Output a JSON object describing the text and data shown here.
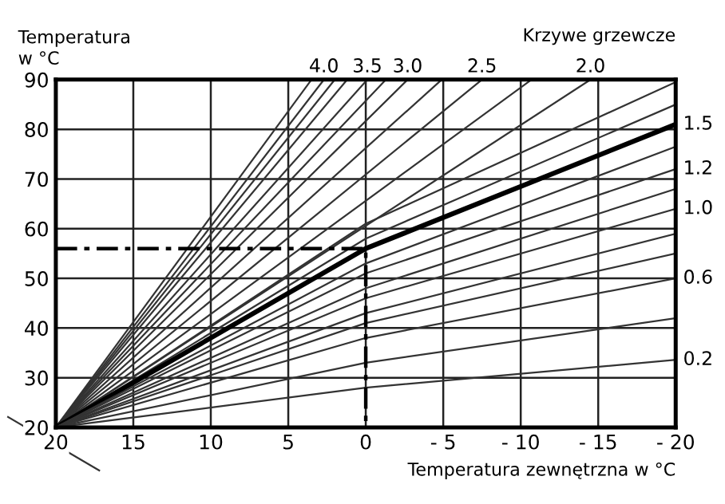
{
  "chart_data": {
    "type": "line",
    "ylabel": "Temperatura\nw °C",
    "xlabel": "Temperatura zewnętrzna w °C",
    "annotations": [
      "Krzywe grzewcze"
    ],
    "xlim": [
      20,
      -20
    ],
    "ylim": [
      20,
      90
    ],
    "xticks": [
      20,
      15,
      10,
      5,
      0,
      {
        "value": -5,
        "label": "- 5"
      },
      {
        "value": -10,
        "label": "- 10"
      },
      {
        "value": -15,
        "label": "- 15"
      },
      {
        "value": -20,
        "label": "- 20"
      }
    ],
    "yticks": [
      20,
      30,
      40,
      50,
      60,
      70,
      80,
      90
    ],
    "grid": true,
    "marker": "none",
    "series": [
      {
        "color": "#333333",
        "x": [
          20,
          3.5
        ],
        "values": [
          20,
          90
        ]
      },
      {
        "name": "4.0",
        "color": "#333333",
        "x": [
          20,
          2.7
        ],
        "values": [
          20,
          90
        ]
      },
      {
        "color": "#333333",
        "x": [
          20,
          2.0
        ],
        "values": [
          20,
          90
        ]
      },
      {
        "color": "#333333",
        "x": [
          20,
          1.2
        ],
        "values": [
          20,
          90
        ]
      },
      {
        "name": "3.5",
        "color": "#333333",
        "x": [
          20,
          -0.1
        ],
        "values": [
          20,
          90
        ]
      },
      {
        "color": "#333333",
        "x": [
          20,
          -1.3
        ],
        "values": [
          20,
          90
        ]
      },
      {
        "name": "3.0",
        "color": "#333333",
        "x": [
          20,
          -2.7
        ],
        "values": [
          20,
          90
        ]
      },
      {
        "color": "#333333",
        "x": [
          20,
          -4.9
        ],
        "values": [
          20,
          90
        ]
      },
      {
        "name": "2.5",
        "color": "#333333",
        "x": [
          20,
          -7.5
        ],
        "values": [
          20,
          90
        ]
      },
      {
        "color": "#333333",
        "x": [
          20,
          -10.7
        ],
        "values": [
          20,
          90
        ]
      },
      {
        "name": "2.0",
        "color": "#333333",
        "x": [
          20,
          -14.5
        ],
        "values": [
          20,
          90
        ]
      },
      {
        "color": "#333333",
        "x": [
          20,
          0,
          -20
        ],
        "values": [
          20,
          61,
          89.5
        ]
      },
      {
        "color": "#333333",
        "x": [
          20,
          0,
          -20
        ],
        "values": [
          20,
          58,
          85
        ]
      },
      {
        "name": "1.5",
        "color": "#000000",
        "x": [
          20,
          0,
          -20
        ],
        "values": [
          20,
          56,
          81
        ]
      },
      {
        "color": "#333333",
        "x": [
          20,
          0,
          -20
        ],
        "values": [
          20,
          53,
          76.5
        ]
      },
      {
        "name": "1.2",
        "color": "#333333",
        "x": [
          20,
          0,
          -20
        ],
        "values": [
          20,
          51,
          72
        ]
      },
      {
        "color": "#333333",
        "x": [
          20,
          0,
          -20
        ],
        "values": [
          20,
          48,
          68
        ]
      },
      {
        "name": "1.0",
        "color": "#333333",
        "x": [
          20,
          0,
          -20
        ],
        "values": [
          20,
          46,
          64
        ]
      },
      {
        "color": "#333333",
        "x": [
          20,
          0,
          -20
        ],
        "values": [
          20,
          43,
          59
        ]
      },
      {
        "color": "#333333",
        "x": [
          20,
          0,
          -20
        ],
        "values": [
          20,
          41,
          55
        ]
      },
      {
        "name": "0.6",
        "color": "#333333",
        "x": [
          20,
          0,
          -20
        ],
        "values": [
          20,
          38,
          50
        ]
      },
      {
        "color": "#333333",
        "x": [
          20,
          0,
          -20
        ],
        "values": [
          20,
          33,
          42
        ]
      },
      {
        "name": "0.2",
        "color": "#333333",
        "x": [
          20,
          0,
          -20
        ],
        "values": [
          20,
          28,
          33.6
        ]
      },
      {
        "color": "#000000",
        "line_style": "dashed",
        "x": [
          20,
          0,
          0
        ],
        "values": [
          56,
          56,
          20
        ]
      }
    ]
  }
}
